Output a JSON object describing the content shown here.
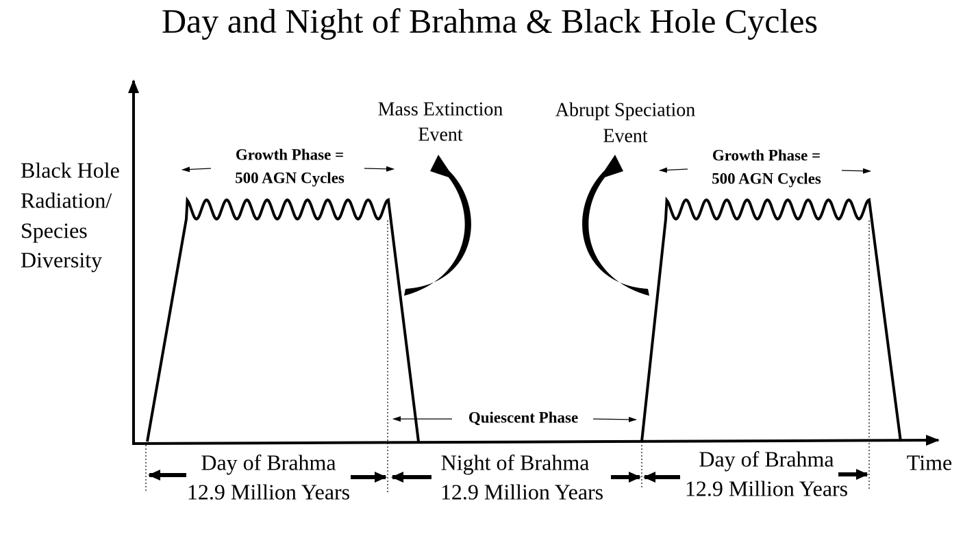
{
  "title": "Day and Night of Brahma & Black Hole Cycles",
  "y_axis_label": [
    "Black Hole",
    "Radiation/",
    "Species",
    "Diversity"
  ],
  "x_axis_label": "Time",
  "growth_phases": [
    {
      "label": [
        "Growth Phase =",
        "500 AGN Cycles"
      ]
    },
    {
      "label": [
        "Growth Phase =",
        "500 AGN Cycles"
      ]
    }
  ],
  "events": [
    {
      "label": [
        "Mass Extinction",
        "Event"
      ]
    },
    {
      "label": [
        "Abrupt Speciation",
        "Event"
      ]
    }
  ],
  "quiescent_phase": "Quiescent Phase",
  "periods": [
    {
      "name": "Day of Brahma",
      "duration": "12.9 Million Years"
    },
    {
      "name": "Night of Brahma",
      "duration": "12.9 Million Years"
    },
    {
      "name": "Day of Brahma",
      "duration": "12.9 Million Years"
    }
  ]
}
